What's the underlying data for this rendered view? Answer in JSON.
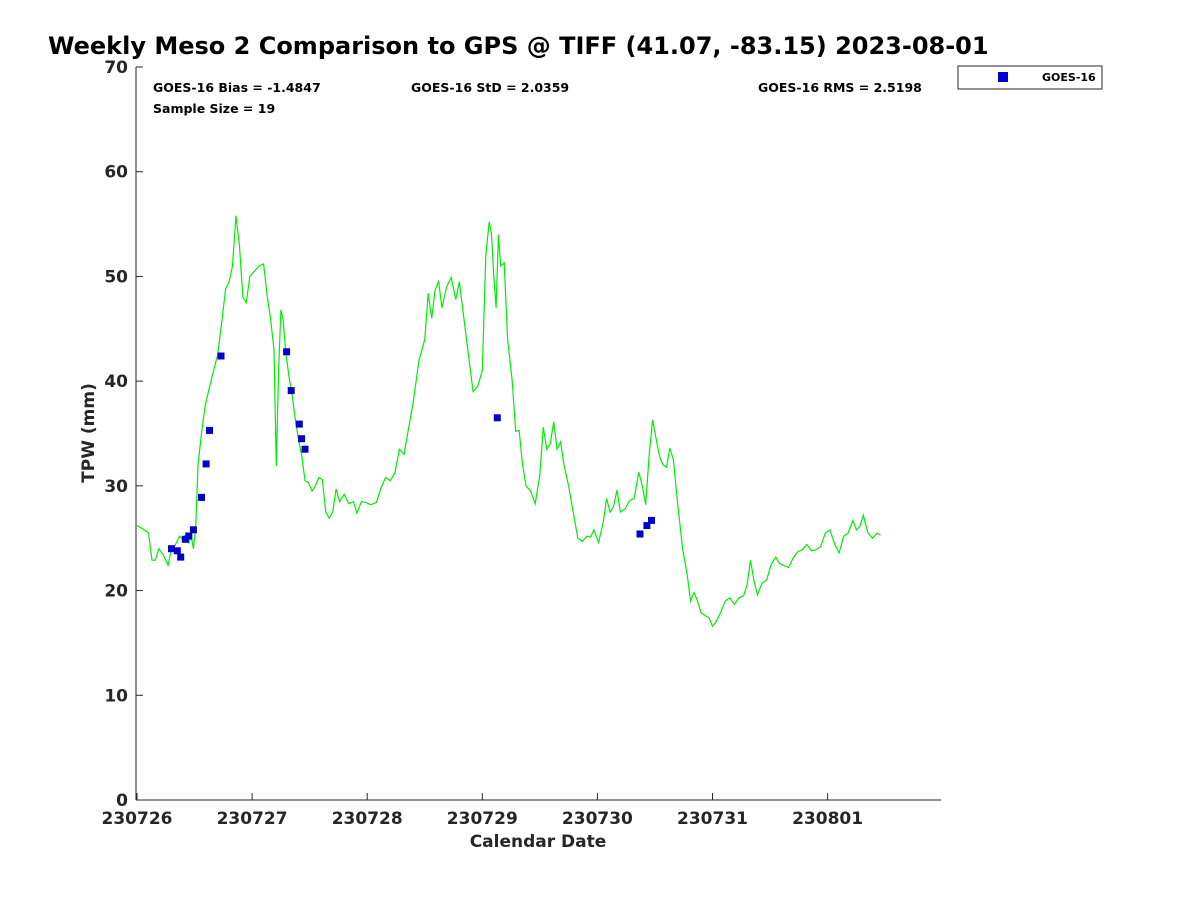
{
  "chart_data": {
    "type": "line",
    "title": "Weekly Meso 2 Comparison to GPS @ TIFF (41.07, -83.15) 2023-08-01",
    "xlabel": "Calendar Date",
    "ylabel": "TPW (mm)",
    "xlim": [
      230726,
      230802.0
    ],
    "ylim": [
      0,
      70
    ],
    "yticks": [
      0,
      10,
      20,
      30,
      40,
      50,
      60,
      70
    ],
    "xticks": [
      {
        "value": 230726,
        "label": "230726"
      },
      {
        "value": 230727,
        "label": "230727"
      },
      {
        "value": 230728,
        "label": "230728"
      },
      {
        "value": 230729,
        "label": "230729"
      },
      {
        "value": 230730,
        "label": "230730"
      },
      {
        "value": 230731,
        "label": "230731"
      },
      {
        "value": 230801,
        "label": "230801"
      }
    ],
    "grid": false,
    "legend_position": "top-right",
    "stats": {
      "bias": "GOES-16 Bias = -1.4847",
      "std": "GOES-16 StD = 2.0359",
      "rms": "GOES-16 RMS = 2.5198",
      "sample": "Sample Size = 19"
    },
    "series": [
      {
        "type": "line",
        "color": "#00ee00",
        "points": [
          [
            230726.0,
            26.2
          ],
          [
            230726.05,
            25.9
          ],
          [
            230726.1,
            25.5
          ],
          [
            230726.13,
            22.9
          ],
          [
            230726.16,
            22.9
          ],
          [
            230726.19,
            24.0
          ],
          [
            230726.23,
            23.4
          ],
          [
            230726.27,
            22.4
          ],
          [
            230726.3,
            24.0
          ],
          [
            230726.33,
            24.3
          ],
          [
            230726.37,
            25.2
          ],
          [
            230726.4,
            24.9
          ],
          [
            230726.43,
            25.5
          ],
          [
            230726.45,
            24.5
          ],
          [
            230726.47,
            25.3
          ],
          [
            230726.49,
            24.0
          ],
          [
            230726.51,
            26.0
          ],
          [
            230726.53,
            32.0
          ],
          [
            230726.56,
            35.0
          ],
          [
            230726.59,
            37.5
          ],
          [
            230726.62,
            39.0
          ],
          [
            230726.66,
            40.8
          ],
          [
            230726.7,
            42.5
          ],
          [
            230726.74,
            46.0
          ],
          [
            230726.77,
            48.8
          ],
          [
            230726.8,
            49.5
          ],
          [
            230726.83,
            51.0
          ],
          [
            230726.86,
            55.8
          ],
          [
            230726.89,
            53.0
          ],
          [
            230726.92,
            48.0
          ],
          [
            230726.95,
            47.5
          ],
          [
            230726.98,
            50.0
          ],
          [
            230727.02,
            50.5
          ],
          [
            230727.06,
            51.0
          ],
          [
            230727.1,
            51.2
          ],
          [
            230727.13,
            48.2
          ],
          [
            230727.16,
            46.0
          ],
          [
            230727.19,
            43.0
          ],
          [
            230727.21,
            31.9
          ],
          [
            230727.23,
            41.0
          ],
          [
            230727.25,
            46.8
          ],
          [
            230727.27,
            45.8
          ],
          [
            230727.29,
            43.0
          ],
          [
            230727.32,
            40.5
          ],
          [
            230727.35,
            38.5
          ],
          [
            230727.38,
            36.0
          ],
          [
            230727.41,
            34.0
          ],
          [
            230727.43,
            33.0
          ],
          [
            230727.46,
            30.5
          ],
          [
            230727.49,
            30.3
          ],
          [
            230727.52,
            29.5
          ],
          [
            230727.55,
            30.0
          ],
          [
            230727.58,
            30.8
          ],
          [
            230727.61,
            30.6
          ],
          [
            230727.64,
            27.5
          ],
          [
            230727.67,
            26.9
          ],
          [
            230727.7,
            27.5
          ],
          [
            230727.73,
            29.7
          ],
          [
            230727.76,
            28.5
          ],
          [
            230727.8,
            29.2
          ],
          [
            230727.84,
            28.3
          ],
          [
            230727.88,
            28.5
          ],
          [
            230727.91,
            27.4
          ],
          [
            230727.95,
            28.5
          ],
          [
            230727.99,
            28.4
          ],
          [
            230728.03,
            28.2
          ],
          [
            230728.08,
            28.4
          ],
          [
            230728.12,
            29.8
          ],
          [
            230728.16,
            30.8
          ],
          [
            230728.2,
            30.5
          ],
          [
            230728.24,
            31.2
          ],
          [
            230728.28,
            33.5
          ],
          [
            230728.32,
            33.0
          ],
          [
            230728.36,
            35.5
          ],
          [
            230728.4,
            38.0
          ],
          [
            230728.45,
            42.0
          ],
          [
            230728.5,
            44.0
          ],
          [
            230728.53,
            48.4
          ],
          [
            230728.56,
            46.0
          ],
          [
            230728.59,
            48.7
          ],
          [
            230728.62,
            49.5
          ],
          [
            230728.65,
            47.0
          ],
          [
            230728.69,
            49.0
          ],
          [
            230728.73,
            49.9
          ],
          [
            230728.77,
            47.8
          ],
          [
            230728.8,
            49.5
          ],
          [
            230728.84,
            46.0
          ],
          [
            230728.88,
            42.5
          ],
          [
            230728.92,
            39.0
          ],
          [
            230728.96,
            39.5
          ],
          [
            230729.0,
            41.0
          ],
          [
            230729.03,
            52.0
          ],
          [
            230729.06,
            55.2
          ],
          [
            230729.08,
            54.0
          ],
          [
            230729.1,
            50.0
          ],
          [
            230729.12,
            47.0
          ],
          [
            230729.14,
            54.0
          ],
          [
            230729.16,
            51.0
          ],
          [
            230729.19,
            51.3
          ],
          [
            230729.22,
            44.0
          ],
          [
            230729.26,
            40.0
          ],
          [
            230729.29,
            35.2
          ],
          [
            230729.32,
            35.3
          ],
          [
            230729.35,
            32.0
          ],
          [
            230729.38,
            30.0
          ],
          [
            230729.42,
            29.5
          ],
          [
            230729.46,
            28.3
          ],
          [
            230729.5,
            31.0
          ],
          [
            230729.53,
            35.6
          ],
          [
            230729.56,
            33.5
          ],
          [
            230729.59,
            34.0
          ],
          [
            230729.62,
            36.1
          ],
          [
            230729.65,
            33.5
          ],
          [
            230729.68,
            34.2
          ],
          [
            230729.71,
            32.0
          ],
          [
            230729.75,
            30.0
          ],
          [
            230729.79,
            27.5
          ],
          [
            230729.83,
            25.0
          ],
          [
            230729.87,
            24.7
          ],
          [
            230729.91,
            25.2
          ],
          [
            230729.94,
            25.1
          ],
          [
            230729.97,
            25.8
          ],
          [
            230730.01,
            24.6
          ],
          [
            230730.05,
            26.5
          ],
          [
            230730.08,
            28.8
          ],
          [
            230730.11,
            27.5
          ],
          [
            230730.14,
            28.0
          ],
          [
            230730.17,
            29.6
          ],
          [
            230730.2,
            27.5
          ],
          [
            230730.24,
            27.8
          ],
          [
            230730.28,
            28.6
          ],
          [
            230730.32,
            28.8
          ],
          [
            230730.36,
            31.3
          ],
          [
            230730.39,
            30.0
          ],
          [
            230730.42,
            28.2
          ],
          [
            230730.45,
            33.0
          ],
          [
            230730.48,
            36.3
          ],
          [
            230730.51,
            34.5
          ],
          [
            230730.54,
            32.8
          ],
          [
            230730.57,
            32.0
          ],
          [
            230730.6,
            31.8
          ],
          [
            230730.63,
            33.6
          ],
          [
            230730.66,
            32.5
          ],
          [
            230730.7,
            28.0
          ],
          [
            230730.74,
            24.0
          ],
          [
            230730.78,
            21.5
          ],
          [
            230730.81,
            19.0
          ],
          [
            230730.84,
            19.8
          ],
          [
            230730.87,
            19.0
          ],
          [
            230730.9,
            17.9
          ],
          [
            230730.94,
            17.6
          ],
          [
            230730.97,
            17.4
          ],
          [
            230731.0,
            16.6
          ],
          [
            230731.03,
            17.0
          ],
          [
            230731.07,
            17.9
          ],
          [
            230731.11,
            19.0
          ],
          [
            230731.15,
            19.3
          ],
          [
            230731.19,
            18.7
          ],
          [
            230731.23,
            19.3
          ],
          [
            230731.27,
            19.5
          ],
          [
            230731.3,
            20.5
          ],
          [
            230731.33,
            22.9
          ],
          [
            230731.36,
            21.0
          ],
          [
            230731.39,
            19.6
          ],
          [
            230731.43,
            20.7
          ],
          [
            230731.47,
            21.0
          ],
          [
            230731.51,
            22.5
          ],
          [
            230731.55,
            23.2
          ],
          [
            230731.58,
            22.6
          ],
          [
            230731.62,
            22.4
          ],
          [
            230731.66,
            22.2
          ],
          [
            230731.7,
            23.1
          ],
          [
            230731.74,
            23.7
          ],
          [
            230731.78,
            23.9
          ],
          [
            230731.82,
            24.4
          ],
          [
            230731.86,
            23.8
          ],
          [
            230731.9,
            23.9
          ],
          [
            230731.94,
            24.2
          ],
          [
            230731.98,
            25.5
          ],
          [
            230801.02,
            25.8
          ],
          [
            230801.06,
            24.5
          ],
          [
            230801.1,
            23.6
          ],
          [
            230801.14,
            25.2
          ],
          [
            230801.18,
            25.5
          ],
          [
            230801.22,
            26.7
          ],
          [
            230801.25,
            25.8
          ],
          [
            230801.28,
            26.1
          ],
          [
            230801.31,
            27.2
          ],
          [
            230801.35,
            25.5
          ],
          [
            230801.39,
            25.0
          ],
          [
            230801.43,
            25.5
          ],
          [
            230801.46,
            25.3
          ]
        ]
      },
      {
        "type": "scatter",
        "name": "GOES-16",
        "color": "#0000cc",
        "points": [
          [
            230726.3,
            24.0
          ],
          [
            230726.35,
            23.8
          ],
          [
            230726.38,
            23.2
          ],
          [
            230726.42,
            24.9
          ],
          [
            230726.45,
            25.2
          ],
          [
            230726.49,
            25.8
          ],
          [
            230726.56,
            28.9
          ],
          [
            230726.6,
            32.1
          ],
          [
            230726.63,
            35.3
          ],
          [
            230726.73,
            42.4
          ],
          [
            230727.3,
            42.8
          ],
          [
            230727.34,
            39.1
          ],
          [
            230727.41,
            35.9
          ],
          [
            230727.43,
            34.5
          ],
          [
            230727.46,
            33.5
          ],
          [
            230729.13,
            36.5
          ],
          [
            230730.37,
            25.4
          ],
          [
            230730.43,
            26.2
          ],
          [
            230730.47,
            26.7
          ]
        ]
      }
    ]
  }
}
